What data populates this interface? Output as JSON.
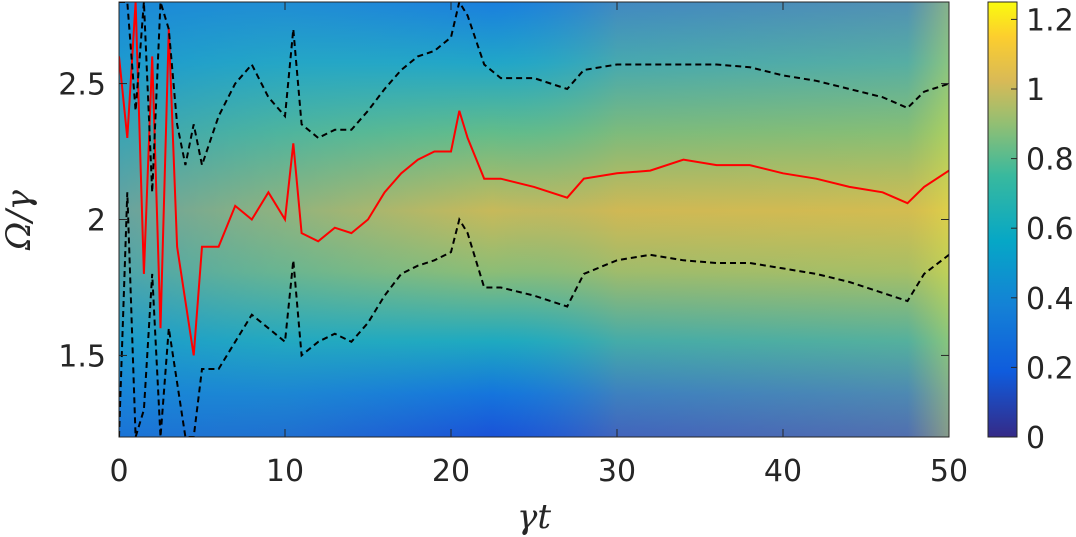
{
  "chart_data": {
    "type": "heatmap",
    "xlabel": "γt",
    "ylabel": "Ω/γ",
    "xlim": [
      0,
      50
    ],
    "ylim": [
      1.2,
      2.8
    ],
    "x_ticks": [
      {
        "value": 0,
        "label": "0"
      },
      {
        "value": 10,
        "label": "10"
      },
      {
        "value": 20,
        "label": "20"
      },
      {
        "value": 30,
        "label": "30"
      },
      {
        "value": 40,
        "label": "40"
      },
      {
        "value": 50,
        "label": "50"
      }
    ],
    "y_ticks": [
      {
        "value": 1.5,
        "label": "1.5"
      },
      {
        "value": 2,
        "label": "2"
      },
      {
        "value": 2.5,
        "label": "2.5"
      }
    ],
    "colorbar": {
      "range": [
        0,
        1.25
      ],
      "colormap": "parula",
      "ticks": [
        {
          "value": 0,
          "label": "0"
        },
        {
          "value": 0.2,
          "label": "0.2"
        },
        {
          "value": 0.4,
          "label": "0.4"
        },
        {
          "value": 0.6,
          "label": "0.6"
        },
        {
          "value": 0.8,
          "label": "0.8"
        },
        {
          "value": 1,
          "label": "1"
        },
        {
          "value": 1.2,
          "label": "1.2"
        }
      ]
    },
    "series": [
      {
        "style": "solid",
        "color": "#ff0000",
        "x": [
          0,
          0.5,
          1,
          1.5,
          2,
          2.5,
          3,
          3.5,
          4,
          4.5,
          5,
          6,
          7,
          8,
          9,
          10,
          10.5,
          11,
          12,
          13,
          14,
          15,
          16,
          17,
          18,
          19,
          20,
          20.5,
          21,
          22,
          23,
          25,
          27,
          28,
          30,
          32,
          34,
          36,
          38,
          40,
          42,
          44,
          46,
          47.5,
          48.5,
          50
        ],
        "y": [
          2.6,
          2.3,
          2.8,
          1.8,
          2.6,
          1.6,
          2.7,
          1.9,
          1.7,
          1.5,
          1.9,
          1.9,
          2.05,
          2.0,
          2.1,
          2.0,
          2.28,
          1.95,
          1.92,
          1.97,
          1.95,
          2.0,
          2.1,
          2.17,
          2.22,
          2.25,
          2.25,
          2.4,
          2.3,
          2.15,
          2.15,
          2.12,
          2.08,
          2.15,
          2.17,
          2.18,
          2.22,
          2.2,
          2.2,
          2.17,
          2.15,
          2.12,
          2.1,
          2.06,
          2.12,
          2.18
        ]
      },
      {
        "style": "dashed",
        "color": "#000000",
        "x": [
          0,
          0.5,
          1,
          1.5,
          2,
          2.5,
          3,
          3.5,
          4,
          4.5,
          5,
          6,
          7,
          8,
          9,
          10,
          10.5,
          11,
          12,
          13,
          14,
          15,
          16,
          17,
          18,
          19,
          20,
          20.5,
          21,
          22,
          23,
          25,
          27,
          28,
          30,
          32,
          34,
          36,
          38,
          40,
          42,
          44,
          46,
          47.5,
          48.5,
          50
        ],
        "y": [
          2.8,
          2.8,
          2.4,
          2.8,
          2.1,
          2.8,
          2.7,
          2.35,
          2.2,
          2.35,
          2.2,
          2.38,
          2.5,
          2.57,
          2.45,
          2.38,
          2.7,
          2.35,
          2.3,
          2.33,
          2.33,
          2.4,
          2.48,
          2.55,
          2.6,
          2.62,
          2.67,
          2.8,
          2.75,
          2.57,
          2.52,
          2.52,
          2.48,
          2.55,
          2.57,
          2.57,
          2.57,
          2.57,
          2.56,
          2.53,
          2.51,
          2.48,
          2.45,
          2.41,
          2.47,
          2.5
        ]
      },
      {
        "style": "dashed",
        "color": "#000000",
        "x": [
          0,
          0.5,
          1,
          1.5,
          2,
          2.5,
          3,
          3.5,
          4,
          4.5,
          5,
          6,
          7,
          8,
          9,
          10,
          10.5,
          11,
          12,
          13,
          14,
          15,
          16,
          17,
          18,
          19,
          20,
          20.5,
          21,
          22,
          23,
          25,
          27,
          28,
          30,
          32,
          34,
          36,
          38,
          40,
          42,
          44,
          46,
          47.5,
          48.5,
          50
        ],
        "y": [
          1.2,
          2.1,
          1.2,
          1.3,
          1.8,
          1.2,
          1.6,
          1.4,
          1.2,
          1.2,
          1.45,
          1.45,
          1.55,
          1.65,
          1.6,
          1.55,
          1.85,
          1.5,
          1.55,
          1.58,
          1.55,
          1.62,
          1.72,
          1.8,
          1.83,
          1.85,
          1.88,
          2.0,
          1.95,
          1.75,
          1.75,
          1.72,
          1.68,
          1.8,
          1.85,
          1.87,
          1.85,
          1.84,
          1.84,
          1.82,
          1.8,
          1.77,
          1.73,
          1.7,
          1.8,
          1.87
        ]
      }
    ]
  }
}
